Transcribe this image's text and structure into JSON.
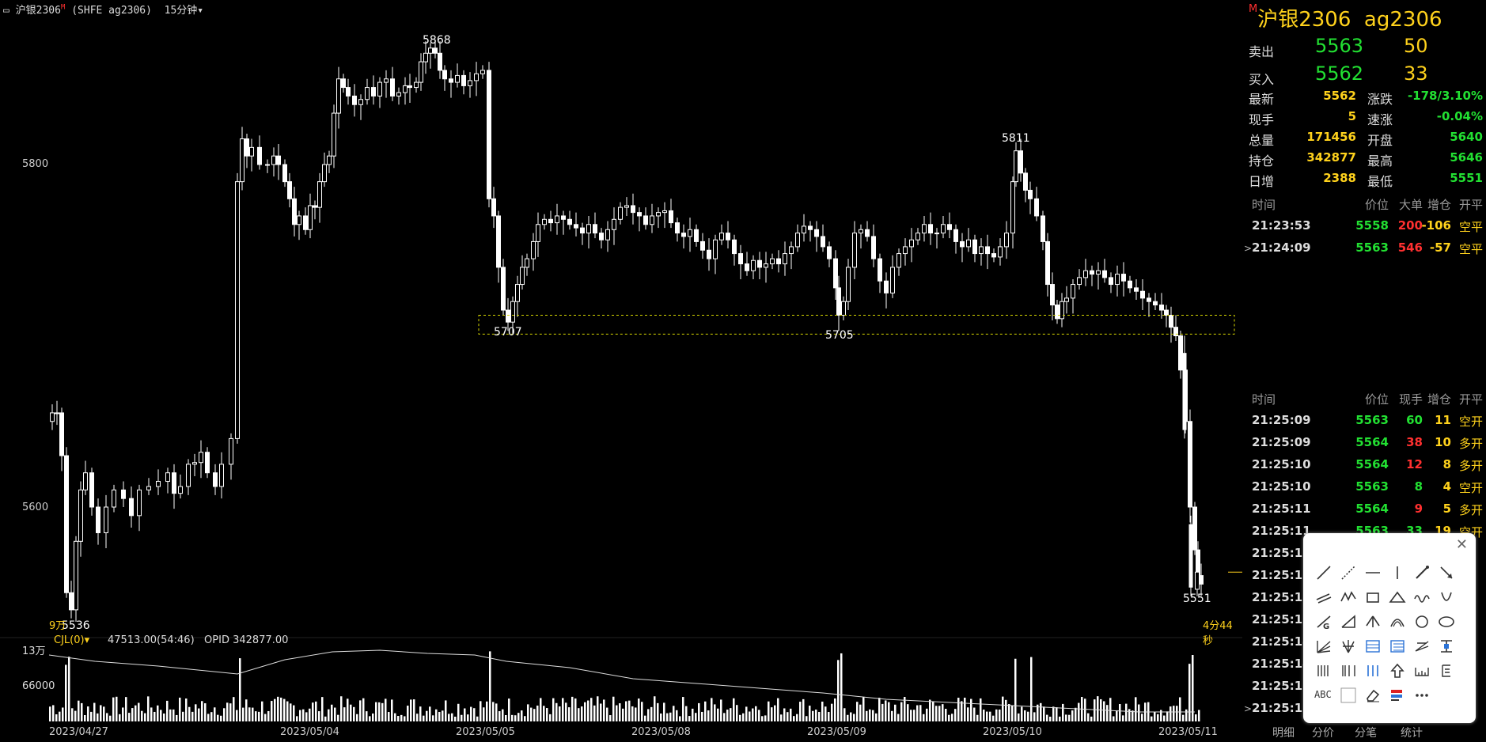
{
  "header": {
    "prefix": "▭",
    "title": "沪银2306",
    "marker": "M",
    "code": "(SHFE ag2306)",
    "period": "15分钟",
    "period_icon": "chevron-down-icon"
  },
  "chart_data": {
    "type": "candlestick",
    "y_tick_labels": [
      "5800",
      "5600"
    ],
    "annotations": {
      "high": "5868",
      "low_left": "5536",
      "support_1": "5707",
      "support_2": "5705",
      "local_high": "5811",
      "low_right": "5551",
      "countdown": "4分44秒",
      "last_tick": "9万"
    },
    "x_tick_labels": [
      "2023/04/27",
      "2023/05/04",
      "2023/05/05",
      "2023/05/08",
      "2023/05/09",
      "2023/05/10",
      "2023/05/11"
    ],
    "volume_tick_labels": [
      "13万",
      "66000"
    ],
    "indicator_name": "CJL(0)",
    "indicator_values": "47513.00(54:46)   OPID 342877.00",
    "highlight_box_color": "#d6d600",
    "candle_color": "#ffffff"
  },
  "quote": {
    "title": "沪银2306",
    "code": "ag2306",
    "marker": "M",
    "ask": {
      "label": "卖出",
      "price": "5563",
      "vol": "50"
    },
    "bid": {
      "label": "买入",
      "price": "5562",
      "vol": "33"
    },
    "stats": [
      {
        "l1": "最新",
        "v1": "5562",
        "l2": "涨跌",
        "v2": "-178/3.10%",
        "c2": "#22e032"
      },
      {
        "l1": "现手",
        "v1": "5",
        "l2": "速涨",
        "v2": "-0.04%",
        "c2": "#22e032"
      },
      {
        "l1": "总量",
        "v1": "171456",
        "l2": "开盘",
        "v2": "5640",
        "c2": "#22e032"
      },
      {
        "l1": "持仓",
        "v1": "342877",
        "l2": "最高",
        "v2": "5646",
        "c2": "#22e032"
      },
      {
        "l1": "日增",
        "v1": "2388",
        "l2": "最低",
        "v2": "5551",
        "c2": "#22e032"
      }
    ]
  },
  "big_orders": {
    "headers": [
      "时间",
      "价位",
      "大单",
      "增仓",
      "开平"
    ],
    "rows": [
      {
        "time": "21:23:53",
        "price": "5558",
        "hand": "200",
        "hand_color": "#ff3030",
        "chg": "-106",
        "kp": "空平",
        "mark": ""
      },
      {
        "time": "21:24:09",
        "price": "5563",
        "hand": "546",
        "hand_color": "#ff3030",
        "chg": "-57",
        "kp": "空平",
        "mark": ">"
      }
    ]
  },
  "ticks": {
    "headers": [
      "时间",
      "价位",
      "现手",
      "增仓",
      "开平"
    ],
    "rows": [
      {
        "time": "21:25:09",
        "price": "5563",
        "hand": "60",
        "hand_color": "#22e032",
        "chg": "11",
        "kp": "空开",
        "mark": ""
      },
      {
        "time": "21:25:09",
        "price": "5564",
        "hand": "38",
        "hand_color": "#ff3030",
        "chg": "10",
        "kp": "多开",
        "mark": ""
      },
      {
        "time": "21:25:10",
        "price": "5564",
        "hand": "12",
        "hand_color": "#ff3030",
        "chg": "8",
        "kp": "多开",
        "mark": ""
      },
      {
        "time": "21:25:10",
        "price": "5563",
        "hand": "8",
        "hand_color": "#22e032",
        "chg": "4",
        "kp": "空开",
        "mark": ""
      },
      {
        "time": "21:25:11",
        "price": "5564",
        "hand": "9",
        "hand_color": "#ff3030",
        "chg": "5",
        "kp": "多开",
        "mark": ""
      },
      {
        "time": "21:25:11",
        "price": "5563",
        "hand": "33",
        "hand_color": "#22e032",
        "chg": "19",
        "kp": "空开",
        "mark": ""
      },
      {
        "time": "21:25:12",
        "price": "",
        "hand": "",
        "hand_color": "#22e032",
        "chg": "",
        "kp": "",
        "mark": ""
      },
      {
        "time": "21:25:12",
        "price": "",
        "hand": "",
        "hand_color": "#22e032",
        "chg": "",
        "kp": "",
        "mark": ""
      },
      {
        "time": "21:25:13",
        "price": "",
        "hand": "",
        "hand_color": "#22e032",
        "chg": "",
        "kp": "",
        "mark": ""
      },
      {
        "time": "21:25:13",
        "price": "",
        "hand": "",
        "hand_color": "#22e032",
        "chg": "",
        "kp": "",
        "mark": ""
      },
      {
        "time": "21:25:14",
        "price": "",
        "hand": "",
        "hand_color": "#22e032",
        "chg": "",
        "kp": "",
        "mark": ""
      },
      {
        "time": "21:25:14",
        "price": "",
        "hand": "",
        "hand_color": "#22e032",
        "chg": "",
        "kp": "",
        "mark": ""
      },
      {
        "time": "21:25:15",
        "price": "",
        "hand": "",
        "hand_color": "#22e032",
        "chg": "",
        "kp": "",
        "mark": ""
      },
      {
        "time": "21:25:15",
        "price": "",
        "hand": "",
        "hand_color": "#22e032",
        "chg": "",
        "kp": "",
        "mark": ">"
      }
    ]
  },
  "tabs": [
    "明细",
    "分价",
    "分笔",
    "统计"
  ],
  "toolbox": {
    "close_icon": "close-icon",
    "tools": [
      "line-tool-icon",
      "dotted-line-tool-icon",
      "horizontal-line-tool-icon",
      "vertical-line-tool-icon",
      "ray-tool-icon",
      "arrow-tool-icon",
      "parallel-line-tool-icon",
      "zigzag-tool-icon",
      "rectangle-tool-icon",
      "triangle-tool-icon",
      "wave-tool-icon",
      "curve-tool-icon",
      "golden-ratio-tool-icon",
      "angle-tool-icon",
      "fork-tool-icon",
      "arc-tool-icon",
      "circle-tool-icon",
      "ellipse-tool-icon",
      "fibonacci-fan-tool-icon",
      "gann-fan-tool-icon",
      "fibonacci-retrace-tool-icon",
      "fibonacci-ext-tool-icon",
      "speed-line-tool-icon",
      "range-tool-icon",
      "period-line-tool-icon",
      "fib-time-tool-icon",
      "cycle-tool-icon",
      "up-arrow-tool-icon",
      "measure-tool-icon",
      "text-style-tool-icon",
      "text-tool-icon",
      "color-tool-icon",
      "eraser-tool-icon",
      "mark-tool-icon",
      "more-tool-icon"
    ],
    "text_tool_label": "ABC"
  }
}
